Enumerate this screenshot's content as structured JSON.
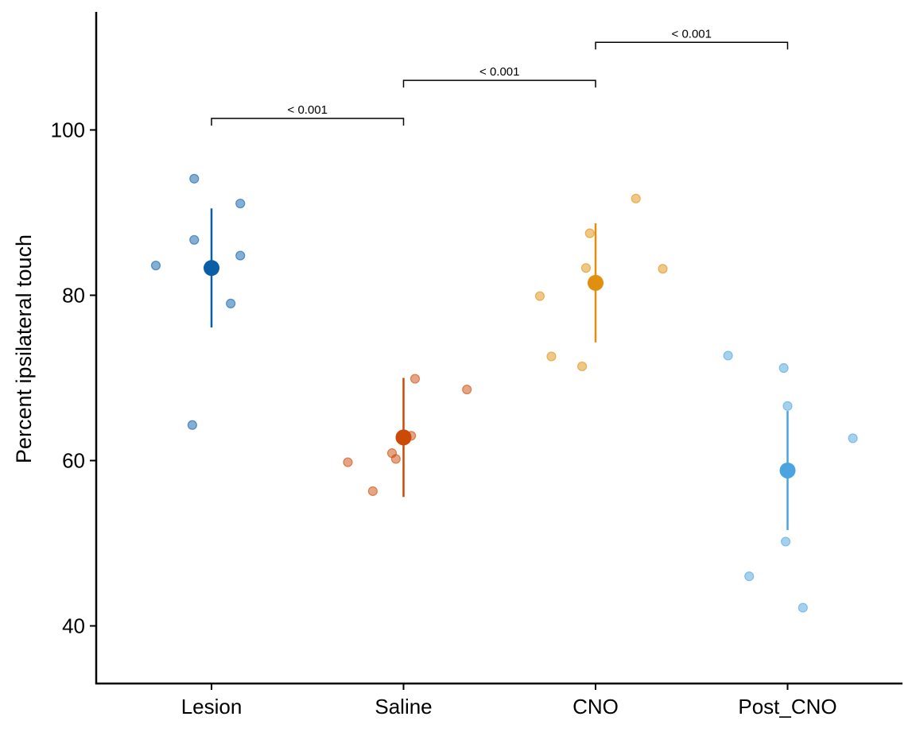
{
  "chart_data": {
    "type": "scatter",
    "title": "",
    "xlabel": "",
    "ylabel": "Percent ipsilateral touch",
    "categories": [
      "Lesion",
      "Saline",
      "CNO",
      "Post_CNO"
    ],
    "ylim": [
      33,
      115
    ],
    "yticks": [
      40,
      60,
      80,
      100
    ],
    "grid": false,
    "legend": "none",
    "series": [
      {
        "category": "Lesion",
        "color": "#0a5ea8",
        "points": [
          {
            "offset": -0.29,
            "y": 83.6
          },
          {
            "offset": -0.09,
            "y": 86.7
          },
          {
            "offset": -0.09,
            "y": 94.1
          },
          {
            "offset": -0.1,
            "y": 64.3
          },
          {
            "offset": 0.1,
            "y": 79.0
          },
          {
            "offset": 0.15,
            "y": 84.8
          },
          {
            "offset": 0.15,
            "y": 91.1
          }
        ],
        "mean": 83.3,
        "ci": [
          76.1,
          90.5
        ]
      },
      {
        "category": "Saline",
        "color": "#cc4a08",
        "points": [
          {
            "offset": -0.29,
            "y": 59.8
          },
          {
            "offset": -0.16,
            "y": 56.3
          },
          {
            "offset": -0.06,
            "y": 60.9
          },
          {
            "offset": -0.04,
            "y": 60.2
          },
          {
            "offset": 0.04,
            "y": 63.0
          },
          {
            "offset": 0.06,
            "y": 69.9
          },
          {
            "offset": 0.33,
            "y": 68.6
          }
        ],
        "mean": 62.8,
        "ci": [
          55.6,
          70.0
        ]
      },
      {
        "category": "CNO",
        "color": "#e0900e",
        "points": [
          {
            "offset": -0.29,
            "y": 79.9
          },
          {
            "offset": -0.23,
            "y": 72.6
          },
          {
            "offset": -0.07,
            "y": 71.4
          },
          {
            "offset": -0.05,
            "y": 83.3
          },
          {
            "offset": -0.03,
            "y": 87.5
          },
          {
            "offset": 0.21,
            "y": 91.7
          },
          {
            "offset": 0.35,
            "y": 83.2
          }
        ],
        "mean": 81.5,
        "ci": [
          74.3,
          88.7
        ]
      },
      {
        "category": "Post_CNO",
        "color": "#4ba3e0",
        "points": [
          {
            "offset": -0.31,
            "y": 72.7
          },
          {
            "offset": -0.2,
            "y": 46.0
          },
          {
            "offset": -0.02,
            "y": 71.2
          },
          {
            "offset": -0.01,
            "y": 50.2
          },
          {
            "offset": 0.0,
            "y": 66.6
          },
          {
            "offset": 0.08,
            "y": 42.2
          },
          {
            "offset": 0.34,
            "y": 62.7
          }
        ],
        "mean": 58.8,
        "ci": [
          51.6,
          66.0
        ]
      }
    ],
    "comparisons": [
      {
        "from": "Lesion",
        "to": "Saline",
        "label": "< 0.001",
        "y": 101.4
      },
      {
        "from": "Saline",
        "to": "CNO",
        "label": "< 0.001",
        "y": 106.0
      },
      {
        "from": "CNO",
        "to": "Post_CNO",
        "label": "< 0.001",
        "y": 110.6
      }
    ]
  }
}
